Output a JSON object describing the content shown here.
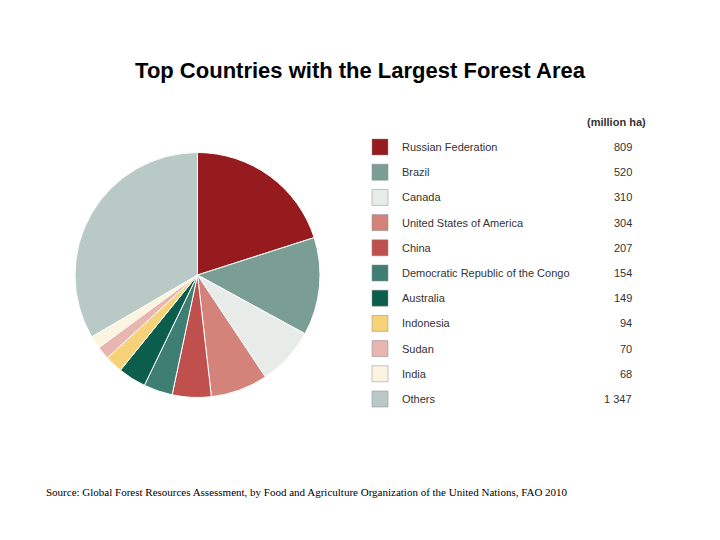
{
  "chart_data": {
    "type": "pie",
    "title": "Top Countries with the Largest Forest Area",
    "legend_title": "(million ha)",
    "source": "Source: Global Forest Resources Assessment, by Food and Agriculture Organization of the United Nations, FAO 2010",
    "categories": [
      "Russian Federation",
      "Brazil",
      "Canada",
      "United States of America",
      "China",
      "Democratic Republic of the Congo",
      "Australia",
      "Indonesia",
      "Sudan",
      "India",
      "Others"
    ],
    "values": [
      809,
      520,
      310,
      304,
      207,
      154,
      149,
      94,
      70,
      68,
      1347
    ],
    "value_labels": [
      "809",
      "520",
      "310",
      "304",
      "207",
      "154",
      "149",
      "94",
      "70",
      "68",
      "1 347"
    ],
    "colors": [
      "#951b1e",
      "#7a9e94",
      "#e8ece9",
      "#d4837a",
      "#c0504d",
      "#3f7f73",
      "#0a5e4b",
      "#f5d278",
      "#e8b5b0",
      "#fbf5e0",
      "#b9c9c6"
    ],
    "legend": "right",
    "data_labels": false
  }
}
